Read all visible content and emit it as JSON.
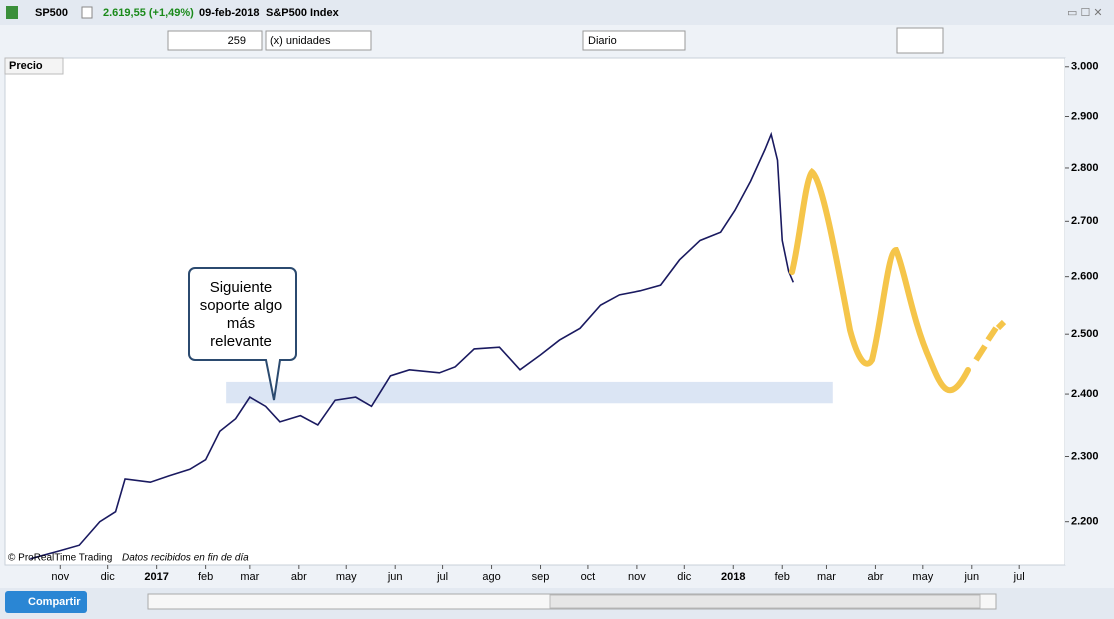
{
  "window": {
    "symbol": "SP500",
    "quote": "2.619,55 (+1,49%)",
    "date": "09-feb-2018",
    "instrument": "S&P500 Index"
  },
  "toolbar": {
    "units_value": "259",
    "units_label": "(x) unidades",
    "period": "Diario"
  },
  "panel": {
    "label": "Precio",
    "credit": "© ProRealTime Trading",
    "note": "Datos recibidos en fin de día"
  },
  "callout": {
    "lines": [
      "Siguiente",
      "soporte algo",
      "más",
      "relevante"
    ]
  },
  "bottom": {
    "share": "Compartir"
  },
  "chart_data": {
    "type": "line",
    "log_scale": true,
    "x": [
      16,
      35,
      47,
      60,
      70,
      76,
      92,
      104,
      117,
      127,
      136,
      146,
      155,
      165,
      174,
      187,
      198,
      209,
      222,
      232,
      244,
      256,
      275,
      285,
      297,
      313,
      326,
      339,
      351,
      364,
      377,
      389,
      402,
      415,
      427,
      440,
      453,
      462,
      472,
      481,
      485,
      489,
      492,
      496,
      499
    ],
    "series": [
      {
        "color": "#1a1a60",
        "values": [
          2145,
          2157,
          2165,
          2200,
          2215,
          2265,
          2260,
          2270,
          2280,
          2295,
          2340,
          2360,
          2395,
          2380,
          2355,
          2365,
          2350,
          2390,
          2395,
          2380,
          2430,
          2440,
          2435,
          2445,
          2475,
          2478,
          2440,
          2465,
          2490,
          2510,
          2550,
          2568,
          2575,
          2585,
          2630,
          2665,
          2680,
          2720,
          2775,
          2835,
          2865,
          2815,
          2665,
          2610,
          2590
        ]
      }
    ],
    "highlight": {
      "x": [
        140,
        524
      ],
      "y": [
        2385,
        2420
      ],
      "color": "#dbe5f4"
    },
    "xlim": [
      0,
      671
    ],
    "xticks": [
      {
        "value": 35,
        "label": "nov"
      },
      {
        "value": 65,
        "label": "dic"
      },
      {
        "value": 96,
        "label": "2017"
      },
      {
        "value": 127,
        "label": "feb"
      },
      {
        "value": 155,
        "label": "mar"
      },
      {
        "value": 186,
        "label": "abr"
      },
      {
        "value": 216,
        "label": "may"
      },
      {
        "value": 247,
        "label": "jun"
      },
      {
        "value": 277,
        "label": "jul"
      },
      {
        "value": 308,
        "label": "ago"
      },
      {
        "value": 339,
        "label": "sep"
      },
      {
        "value": 369,
        "label": "oct"
      },
      {
        "value": 400,
        "label": "nov"
      },
      {
        "value": 430,
        "label": "dic"
      },
      {
        "value": 461,
        "label": "2018"
      },
      {
        "value": 492,
        "label": "feb"
      },
      {
        "value": 520,
        "label": "mar"
      },
      {
        "value": 551,
        "label": "abr"
      },
      {
        "value": 581,
        "label": "may"
      },
      {
        "value": 612,
        "label": "jun"
      },
      {
        "value": 642,
        "label": "jul"
      }
    ],
    "ylim": [
      2136,
      3018
    ],
    "yticks": [
      {
        "value": 2200,
        "label": "2.200"
      },
      {
        "value": 2300,
        "label": "2.300"
      },
      {
        "value": 2400,
        "label": "2.400"
      },
      {
        "value": 2500,
        "label": "2.500"
      },
      {
        "value": 2600,
        "label": "2.600"
      },
      {
        "value": 2700,
        "label": "2.700"
      },
      {
        "value": 2800,
        "label": "2.800"
      },
      {
        "value": 2900,
        "label": "2.900"
      },
      {
        "value": 3000,
        "label": "3.000"
      }
    ]
  }
}
